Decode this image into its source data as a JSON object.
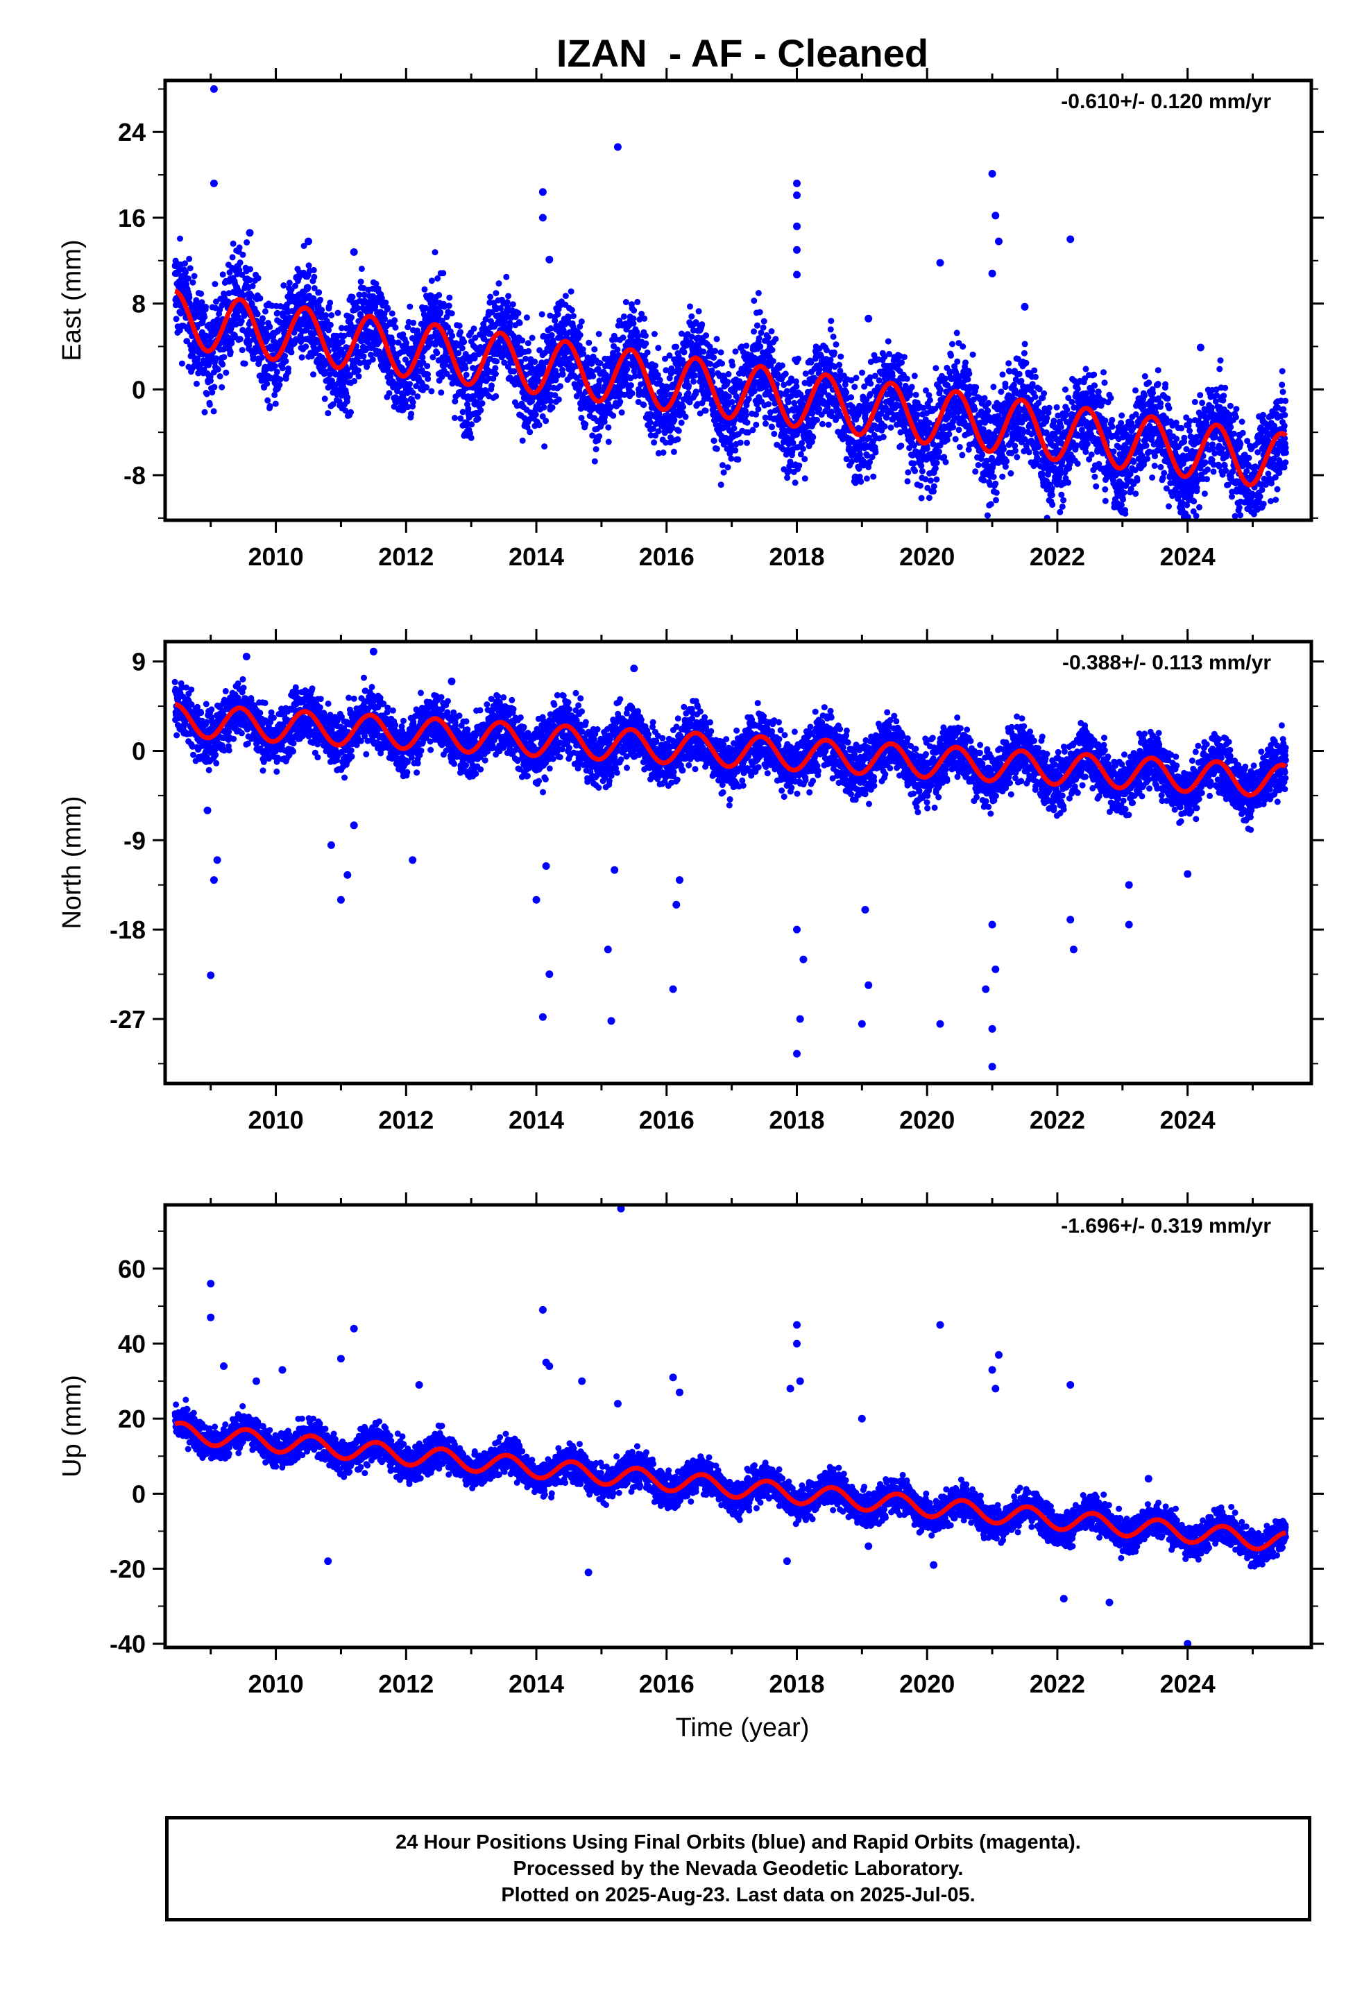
{
  "chart_data": {
    "title": "IZAN  - AF - Cleaned",
    "xlabel": "Time (year)",
    "x_range": [
      2008.3,
      2025.9
    ],
    "x_ticks": [
      2010,
      2012,
      2014,
      2016,
      2018,
      2020,
      2022,
      2024
    ],
    "colors": {
      "points": "#0000ff",
      "model": "#ff0000",
      "frame": "#000000"
    },
    "panels": [
      {
        "type": "scatter",
        "ylabel": "East (mm)",
        "rate": "-0.610+/- 0.120 mm/yr",
        "ylim": [
          -12.2,
          28.8
        ],
        "yticks": [
          -8,
          0,
          8,
          16,
          24
        ],
        "trend": {
          "t0": 2008.4,
          "y0": 6.6,
          "slope": -0.78
        },
        "seasonal": {
          "amplitude": 2.6,
          "peak_phase": 0.45
        },
        "outliers": [
          [
            2009.05,
            28
          ],
          [
            2009.05,
            19.2
          ],
          [
            2009.6,
            14.6
          ],
          [
            2010.5,
            13.8
          ],
          [
            2011.2,
            12.8
          ],
          [
            2014.1,
            18.4
          ],
          [
            2014.1,
            16
          ],
          [
            2014.2,
            12.1
          ],
          [
            2015.25,
            22.6
          ],
          [
            2018.0,
            19.2
          ],
          [
            2018.0,
            18.1
          ],
          [
            2018.0,
            15.2
          ],
          [
            2018.0,
            13
          ],
          [
            2018.0,
            10.7
          ],
          [
            2021.0,
            20.1
          ],
          [
            2021.05,
            16.2
          ],
          [
            2021.1,
            13.8
          ],
          [
            2021.0,
            10.8
          ],
          [
            2022.2,
            14
          ],
          [
            2020.2,
            11.8
          ],
          [
            2019.1,
            6.6
          ],
          [
            2024.2,
            3.9
          ],
          [
            2018.9,
            -8.2
          ],
          [
            2023.0,
            -11.4
          ],
          [
            2021.5,
            7.7
          ]
        ]
      },
      {
        "type": "scatter",
        "ylabel": "North (mm)",
        "rate": "-0.388+/- 0.113 mm/yr",
        "ylim": [
          -33.5,
          11
        ],
        "yticks": [
          -27,
          -18,
          -9,
          0,
          9
        ],
        "trend": {
          "t0": 2008.4,
          "y0": 3.1,
          "slope": -0.36
        },
        "seasonal": {
          "amplitude": 1.6,
          "peak_phase": 0.45
        },
        "outliers": [
          [
            2009.0,
            -22.6
          ],
          [
            2009.05,
            -13
          ],
          [
            2009.1,
            -11
          ],
          [
            2008.95,
            -6
          ],
          [
            2010.85,
            -9.5
          ],
          [
            2011.0,
            -15
          ],
          [
            2011.1,
            -12.5
          ],
          [
            2011.2,
            -7.5
          ],
          [
            2011.5,
            10
          ],
          [
            2012.1,
            -11
          ],
          [
            2014.0,
            -15
          ],
          [
            2014.1,
            -26.8
          ],
          [
            2014.15,
            -11.6
          ],
          [
            2014.2,
            -22.5
          ],
          [
            2015.15,
            -27.2
          ],
          [
            2015.1,
            -20
          ],
          [
            2015.2,
            -12
          ],
          [
            2016.1,
            -24
          ],
          [
            2016.2,
            -13
          ],
          [
            2016.15,
            -15.5
          ],
          [
            2018.0,
            -30.5
          ],
          [
            2018.05,
            -27
          ],
          [
            2018.1,
            -21
          ],
          [
            2018.0,
            -18
          ],
          [
            2019.0,
            -27.5
          ],
          [
            2019.05,
            -16
          ],
          [
            2019.1,
            -23.6
          ],
          [
            2020.2,
            -27.5
          ],
          [
            2021.0,
            -31.8
          ],
          [
            2020.9,
            -24
          ],
          [
            2021.0,
            -28
          ],
          [
            2021.05,
            -22
          ],
          [
            2021.0,
            -17.5
          ],
          [
            2022.2,
            -17
          ],
          [
            2022.25,
            -20
          ],
          [
            2023.1,
            -13.5
          ],
          [
            2023.1,
            -17.5
          ],
          [
            2024.0,
            -12.4
          ],
          [
            2015.5,
            8.3
          ],
          [
            2009.55,
            9.5
          ],
          [
            2012.7,
            7
          ]
        ]
      },
      {
        "type": "scatter",
        "ylabel": "Up (mm)",
        "rate": "-1.696+/- 0.319 mm/yr",
        "ylim": [
          -41,
          77
        ],
        "yticks": [
          -40,
          -20,
          0,
          20,
          40,
          60
        ],
        "trend": {
          "t0": 2008.4,
          "y0": 16.5,
          "slope": -1.72
        },
        "seasonal": {
          "amplitude": 2.6,
          "peak_phase": 0.55
        },
        "outliers": [
          [
            2009.0,
            56
          ],
          [
            2009.0,
            47
          ],
          [
            2009.2,
            34
          ],
          [
            2009.7,
            30
          ],
          [
            2010.1,
            33
          ],
          [
            2010.8,
            -18
          ],
          [
            2011.2,
            44
          ],
          [
            2011.0,
            36
          ],
          [
            2012.2,
            29
          ],
          [
            2014.1,
            49
          ],
          [
            2014.15,
            35
          ],
          [
            2014.2,
            34
          ],
          [
            2014.7,
            30
          ],
          [
            2014.8,
            -21
          ],
          [
            2015.3,
            76
          ],
          [
            2015.25,
            24
          ],
          [
            2016.1,
            31
          ],
          [
            2016.2,
            27
          ],
          [
            2018.0,
            45
          ],
          [
            2018.0,
            40
          ],
          [
            2017.9,
            28
          ],
          [
            2018.05,
            30
          ],
          [
            2017.85,
            -18
          ],
          [
            2019.0,
            20
          ],
          [
            2020.2,
            45
          ],
          [
            2020.1,
            -19
          ],
          [
            2021.1,
            37
          ],
          [
            2021.0,
            33
          ],
          [
            2021.05,
            28
          ],
          [
            2022.2,
            29
          ],
          [
            2022.1,
            -28
          ],
          [
            2022.8,
            -29
          ],
          [
            2024.0,
            -40
          ],
          [
            2023.4,
            4
          ],
          [
            2019.1,
            -14
          ]
        ]
      }
    ]
  },
  "footer": {
    "line1": "24 Hour Positions Using Final Orbits (blue) and Rapid Orbits (magenta).",
    "line2": "Processed by the Nevada Geodetic Laboratory.",
    "line3": "Plotted on 2025-Aug-23. Last data on 2025-Jul-05."
  }
}
